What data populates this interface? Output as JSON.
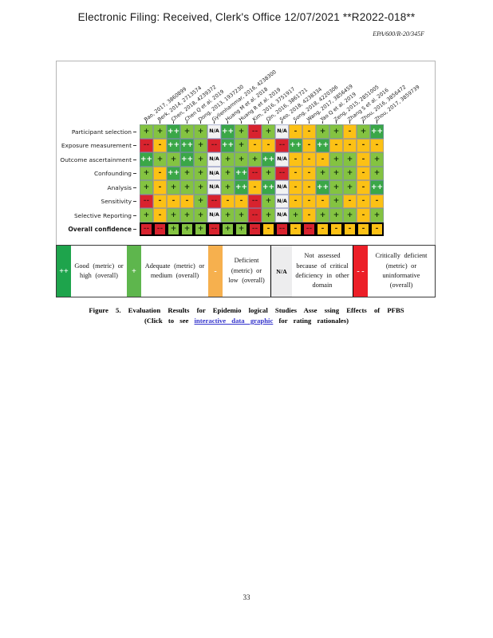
{
  "header": {
    "title": "Electronic Filing: Received, Clerk's Office 12/07/2021 **R2022-018**",
    "doc_number": "EPA/600/R-20/345F"
  },
  "chart_data": {
    "type": "heatmap",
    "columns": [
      "Bao, 2017, 3860899",
      "Berk, 2014, 2713574",
      "Chen, 2018, 4239372",
      "Chen Q et al. 2019",
      "Dong, 2013, 1937230",
      "Gyllenhammar, 2016, 4238300",
      "Huang M et al. 2018",
      "Huang R et al. 2019",
      "Kim, 2016, 3751917",
      "Qin, 2016, 3861721",
      "Seo, 2018, 4238334",
      "Song, 2018, 4220306",
      "Wang, 2017, 3856459",
      "Yao Q et al. 2019",
      "Zeng, 2015, 2851005",
      "Zhang S et al. 2016",
      "Zhou, 2016, 3856472",
      "Zhou, 2017, 3859739"
    ],
    "rows": [
      "Participant selection",
      "Exposure measurement",
      "Outcome ascertainment",
      "Confounding",
      "Analysis",
      "Sensitivity",
      "Selective Reporting",
      "Overall confidence"
    ],
    "values": [
      [
        "+",
        "+",
        "++",
        "+",
        "+",
        "N/A",
        "++",
        "+",
        "--",
        "+",
        "N/A",
        "-",
        "-",
        "+",
        "+",
        "-",
        "+",
        "++"
      ],
      [
        "--",
        "-",
        "++",
        "++",
        "+",
        "--",
        "++",
        "+",
        "-",
        "-",
        "--",
        "++",
        "-",
        "++",
        "-",
        "-",
        "-",
        "-"
      ],
      [
        "++",
        "+",
        "+",
        "++",
        "+",
        "N/A",
        "+",
        "+",
        "+",
        "++",
        "N/A",
        "-",
        "-",
        "-",
        "+",
        "+",
        "-",
        "+"
      ],
      [
        "+",
        "-",
        "++",
        "+",
        "+",
        "N/A",
        "+",
        "++",
        "--",
        "+",
        "--",
        "-",
        "-",
        "+",
        "+",
        "+",
        "-",
        "+"
      ],
      [
        "+",
        "-",
        "+",
        "+",
        "+",
        "N/A",
        "+",
        "++",
        "-",
        "++",
        "N/A",
        "-",
        "-",
        "++",
        "+",
        "+",
        "-",
        "++"
      ],
      [
        "--",
        "-",
        "-",
        "-",
        "+",
        "--",
        "-",
        "-",
        "--",
        "+",
        "N/A",
        "-",
        "-",
        "-",
        "+",
        "-",
        "-",
        "-"
      ],
      [
        "+",
        "-",
        "+",
        "+",
        "+",
        "N/A",
        "+",
        "+",
        "--",
        "+",
        "N/A",
        "+",
        "-",
        "+",
        "+",
        "+",
        "-",
        "+"
      ],
      [
        "--",
        "--",
        "+",
        "+",
        "+",
        "--",
        "+",
        "+",
        "--",
        "-",
        "--",
        "-",
        "--",
        "-",
        "-",
        "-",
        "-",
        "-"
      ]
    ],
    "rating_colors": {
      "++": "#3aa747",
      "+": "#84c341",
      "-": "#fcc115",
      "--": "#d8232e",
      "N/A": "#f2f2f2"
    },
    "symbol_text_colors": {
      "++": "#ffffff",
      "+": "#14320e",
      "-": "#2e2308",
      "--": "#64141a",
      "N/A": "#000000"
    },
    "layout_hints": {
      "column_labels_rotated": true,
      "overall_row_black_border": true
    }
  },
  "legend": {
    "items": [
      {
        "symbol": "++",
        "color": "#1ea44c",
        "text": "Good (metric) or high (overall)"
      },
      {
        "symbol": "+",
        "color": "#5eb64d",
        "text": "Adequate (metric) or medium (overall)"
      },
      {
        "symbol": "-",
        "color": "#f6b04e",
        "text": "Deficient (metric) or low (overall)"
      },
      {
        "symbol": "N/A",
        "color": "#ededee",
        "text": "Not assessed because of critical deficiency in other domain"
      },
      {
        "symbol": "- -",
        "color": "#ec1f28",
        "text": "Critically deficient (metric) or uninformative (overall)"
      }
    ]
  },
  "caption": {
    "line1": "Figure 5. Evaluation Results for Epidemio logical Studies Asse ssing Effects of PFBS",
    "line2_prefix": "(Click to see ",
    "line2_link": "interactive data graphic",
    "line2_suffix": " for rating rationales)",
    "link_color": "#3333cc"
  },
  "footer": {
    "page_number": "33"
  }
}
